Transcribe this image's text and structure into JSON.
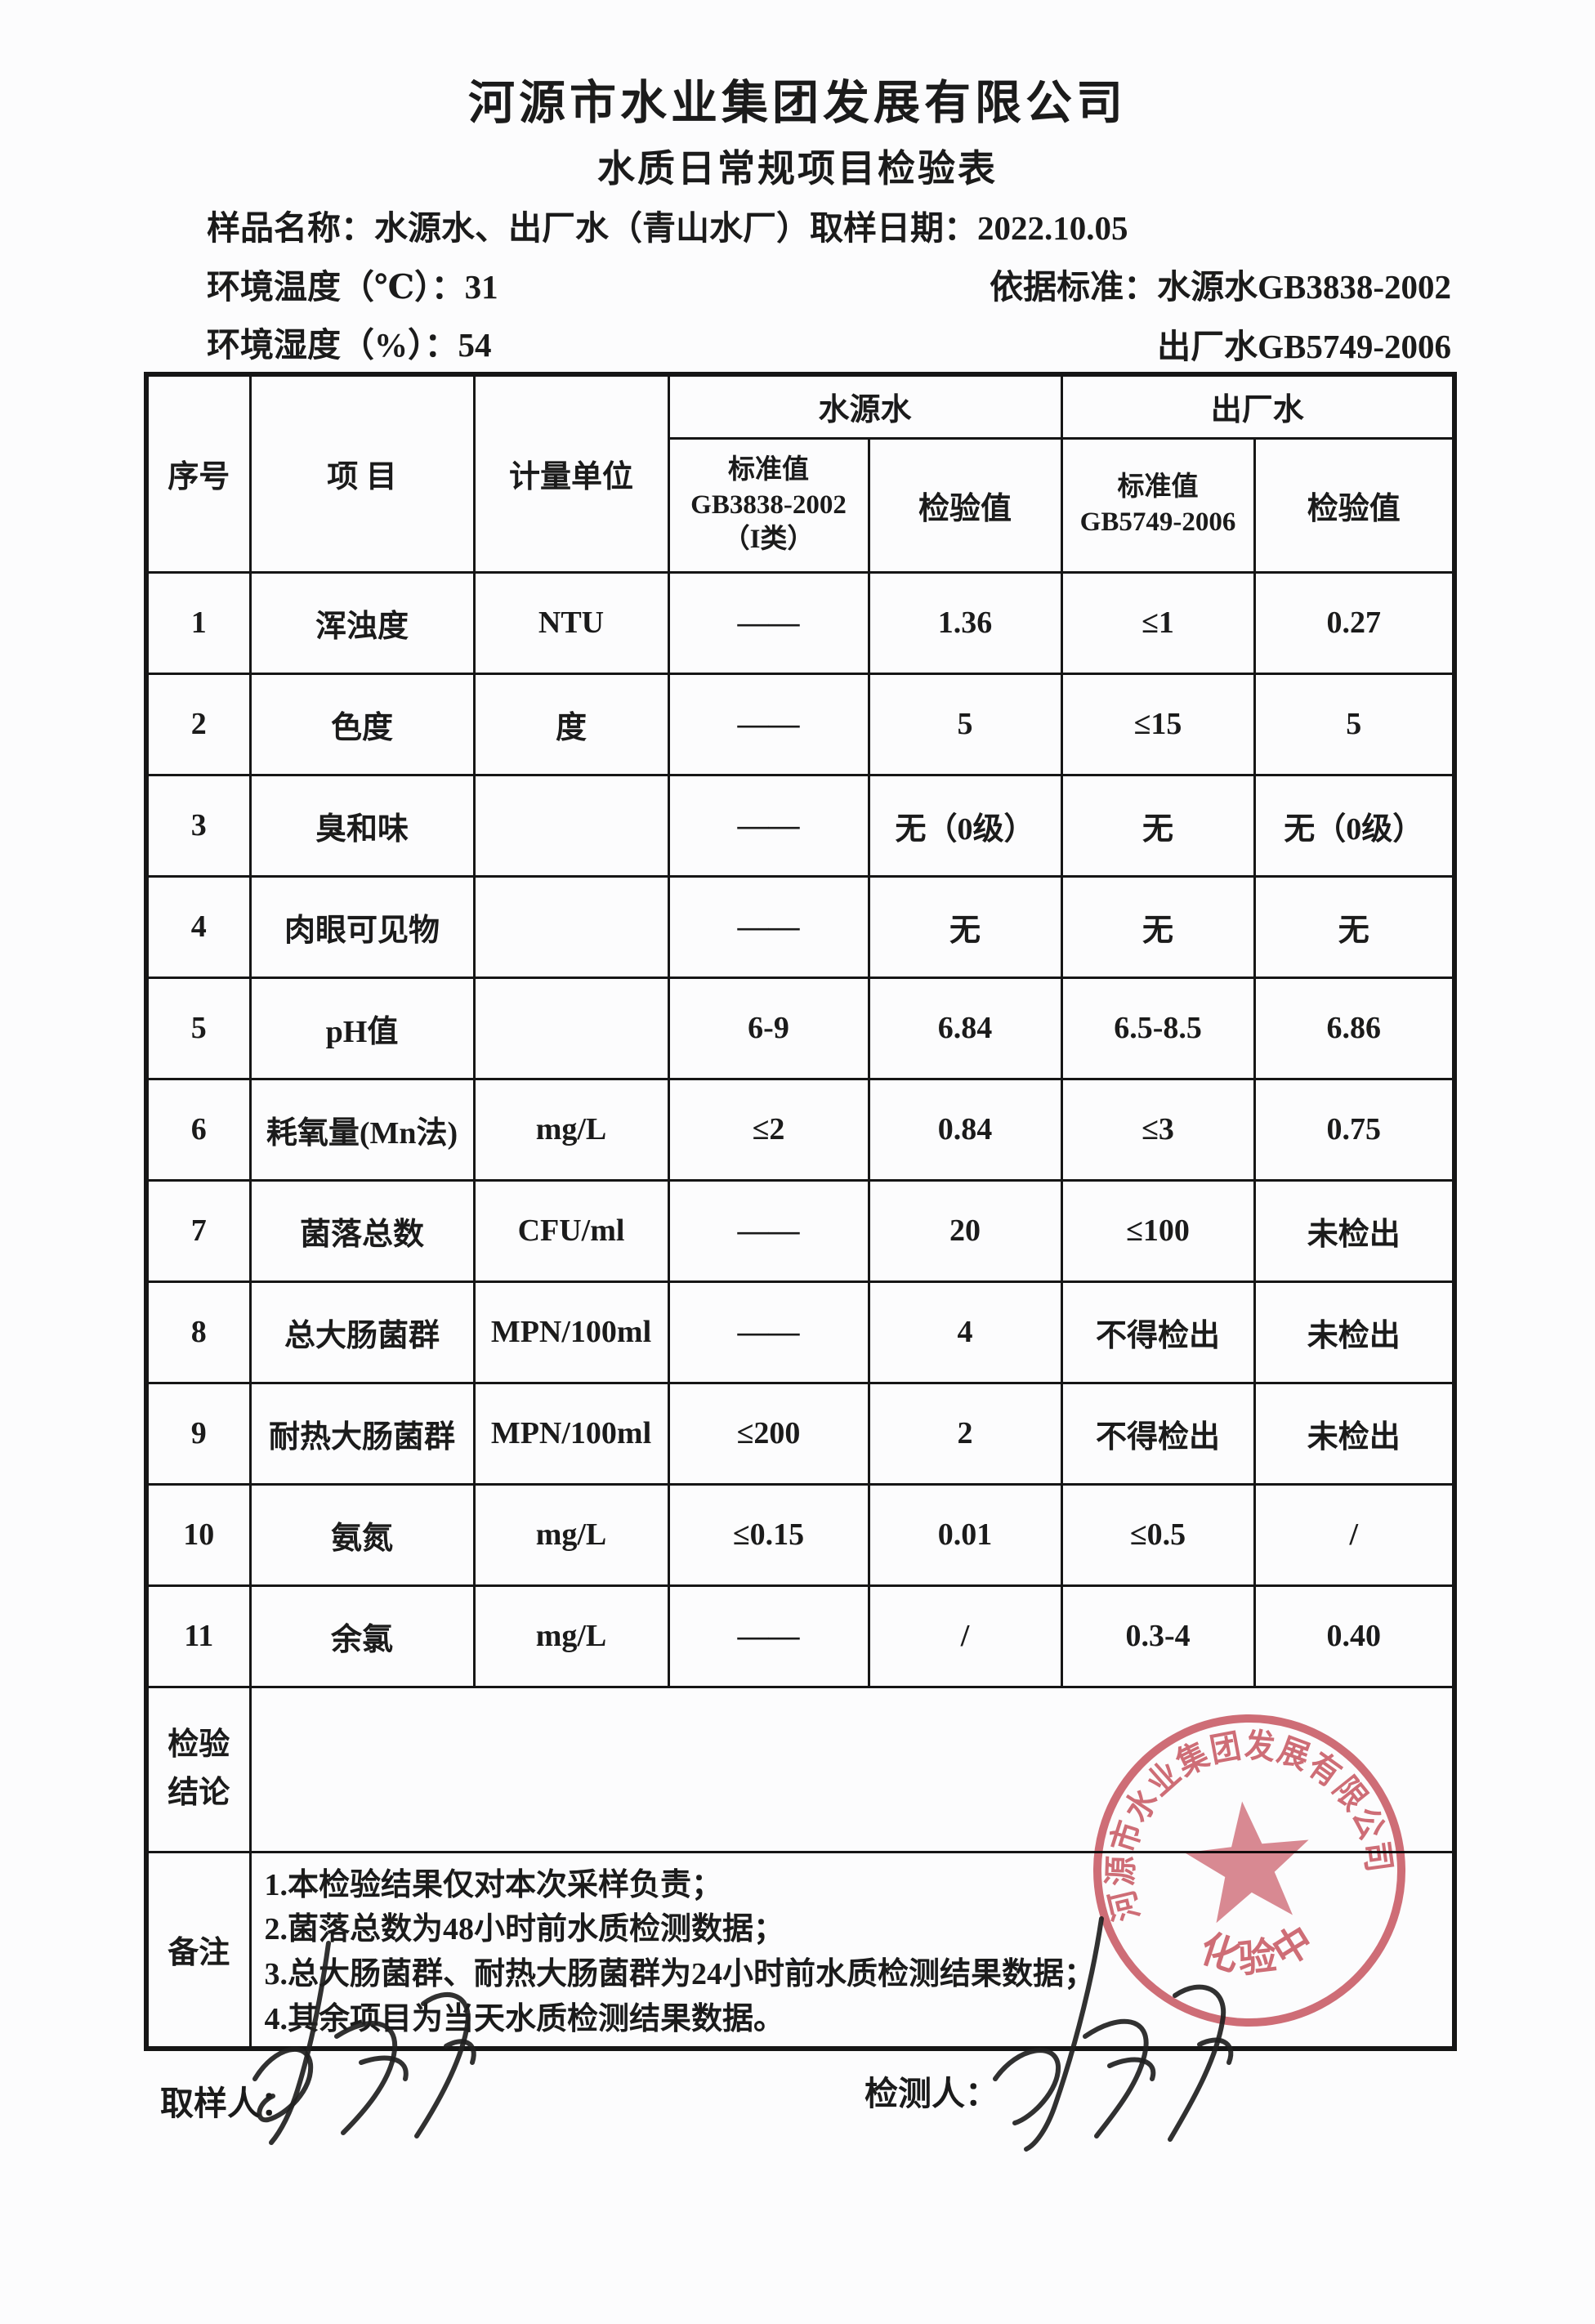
{
  "page": {
    "company_title": "河源市水业集团发展有限公司",
    "form_title": "水质日常规项目检验表"
  },
  "info": {
    "sample_name_label": "样品名称：",
    "sample_name": "水源水、出厂水（青山水厂）",
    "sampling_date_label": "取样日期：",
    "sampling_date": "2022.10.05",
    "temperature_label": "环境温度（℃）：",
    "temperature": "31",
    "standard_label": "依据标准：",
    "standard_source_water": "水源水GB3838-2002",
    "humidity_label": "环境湿度（%）：",
    "humidity": "54",
    "standard_outlet_water": "出厂水GB5749-2006"
  },
  "table": {
    "col_headers": {
      "seq": "序号",
      "item": "项  目",
      "unit": "计量单位",
      "group_source": "水源水",
      "group_outlet": "出厂水",
      "std1": [
        "标准值",
        "GB3838-2002",
        "（I类）"
      ],
      "check1": "检验值",
      "std2": [
        "标准值",
        "GB5749-2006"
      ],
      "check2": "检验值"
    },
    "rows": [
      {
        "seq": "1",
        "item": "浑浊度",
        "unit": "NTU",
        "std1": "——",
        "val1": "1.36",
        "std2": "≤1",
        "val2": "0.27"
      },
      {
        "seq": "2",
        "item": "色度",
        "unit": "度",
        "std1": "——",
        "val1": "5",
        "std2": "≤15",
        "val2": "5"
      },
      {
        "seq": "3",
        "item": "臭和味",
        "unit": "",
        "std1": "——",
        "val1": "无（0级）",
        "std2": "无",
        "val2": "无（0级）"
      },
      {
        "seq": "4",
        "item": "肉眼可见物",
        "unit": "",
        "std1": "——",
        "val1": "无",
        "std2": "无",
        "val2": "无"
      },
      {
        "seq": "5",
        "item": "pH值",
        "unit": "",
        "std1": "6-9",
        "val1": "6.84",
        "std2": "6.5-8.5",
        "val2": "6.86"
      },
      {
        "seq": "6",
        "item": "耗氧量(Mn法)",
        "unit": "mg/L",
        "std1": "≤2",
        "val1": "0.84",
        "std2": "≤3",
        "val2": "0.75"
      },
      {
        "seq": "7",
        "item": "菌落总数",
        "unit": "CFU/ml",
        "std1": "——",
        "val1": "20",
        "std2": "≤100",
        "val2": "未检出"
      },
      {
        "seq": "8",
        "item": "总大肠菌群",
        "unit": "MPN/100ml",
        "std1": "——",
        "val1": "4",
        "std2": "不得检出",
        "val2": "未检出"
      },
      {
        "seq": "9",
        "item": "耐热大肠菌群",
        "unit": "MPN/100ml",
        "std1": "≤200",
        "val1": "2",
        "std2": "不得检出",
        "val2": "未检出"
      },
      {
        "seq": "10",
        "item": "氨氮",
        "unit": "mg/L",
        "std1": "≤0.15",
        "val1": "0.01",
        "std2": "≤0.5",
        "val2": "/"
      },
      {
        "seq": "11",
        "item": "余氯",
        "unit": "mg/L",
        "std1": "——",
        "val1": "/",
        "std2": "0.3-4",
        "val2": "0.40"
      }
    ],
    "conclusion": {
      "label_lines": [
        "检验",
        "结论"
      ],
      "content": ""
    },
    "remarks": {
      "label": "备注",
      "lines": [
        "1.本检验结果仅对本次采样负责；",
        "2.菌落总数为48小时前水质检测数据；",
        "3.总大肠菌群、耐热大肠菌群为24小时前水质检测结果数据；",
        "4.其余项目为当天水质检测结果数据。"
      ]
    }
  },
  "footer": {
    "sampler_label": "取样人：",
    "tester_label": "检测人："
  },
  "stamp": {
    "ring_text": "河源市水业集团发展有限公司",
    "bottom_text": "化验中心",
    "color": "#c9545f"
  }
}
